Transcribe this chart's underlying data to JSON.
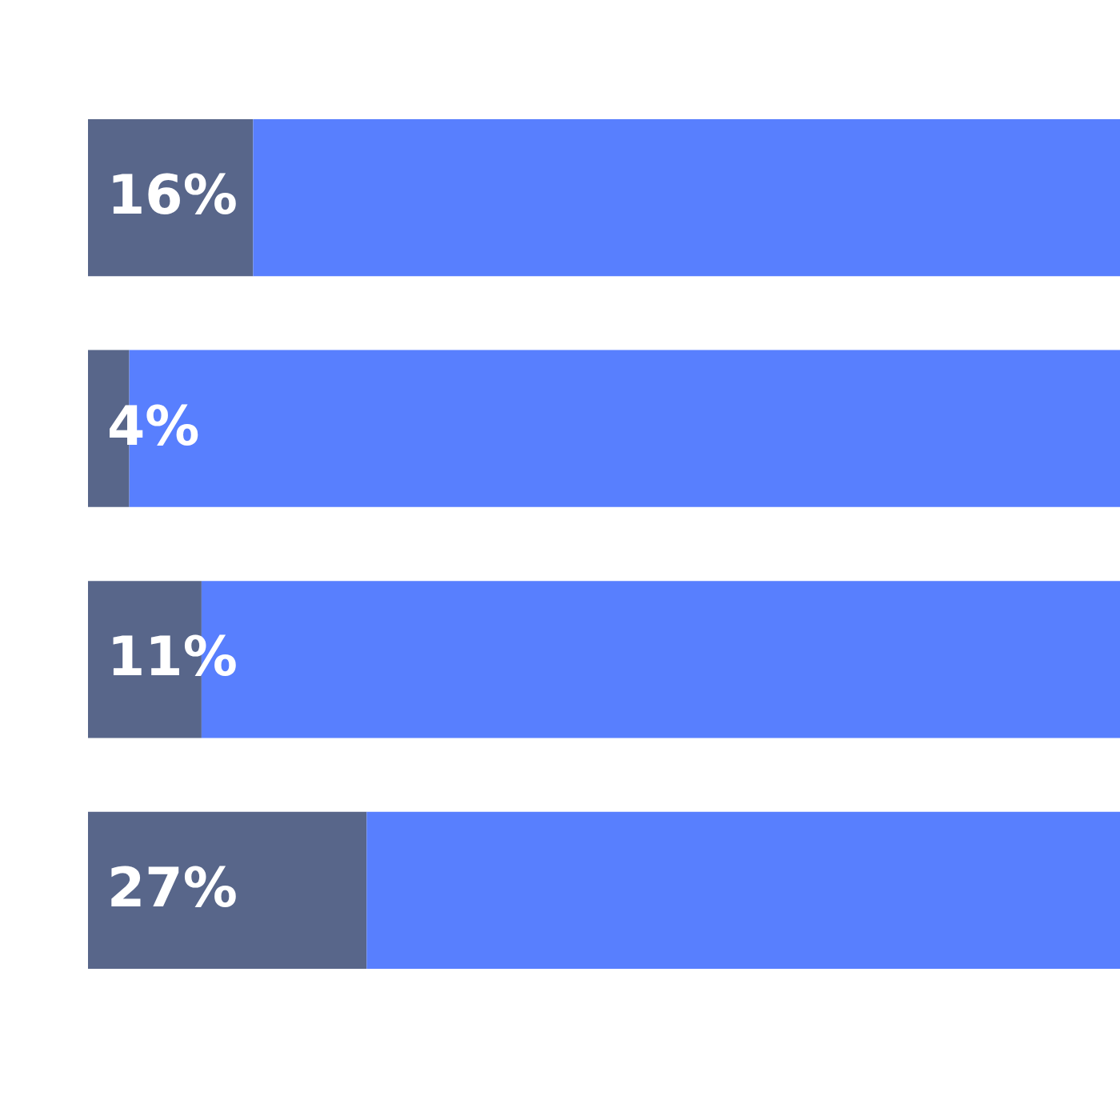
{
  "chart_data": {
    "type": "bar",
    "orientation": "horizontal",
    "stacked": true,
    "categories": [
      null,
      null,
      null,
      null
    ],
    "series": [
      {
        "color": "#58668a",
        "values": [
          16,
          4,
          11,
          27
        ],
        "value_labels": [
          "16%",
          "4%",
          "11%",
          "27%"
        ]
      },
      {
        "color": "#587ffe",
        "values": [
          84,
          96,
          89,
          73
        ]
      }
    ],
    "xlim": [
      0,
      100
    ],
    "tick_labels": false,
    "legend": false
  }
}
